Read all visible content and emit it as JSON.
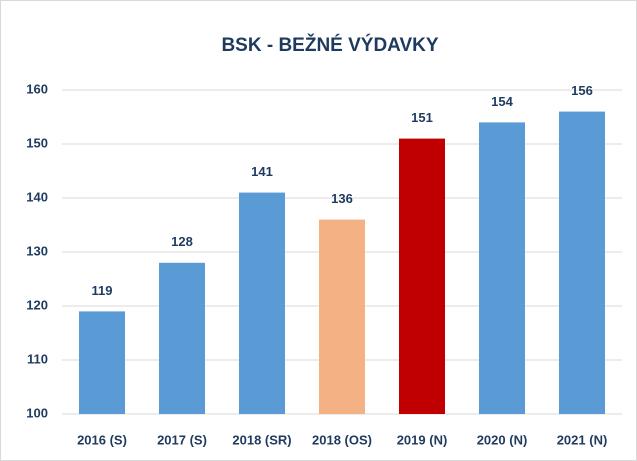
{
  "chart_data": {
    "type": "bar",
    "title": "BSK - BEŽNÉ VÝDAVKY",
    "categories": [
      "2016 (S)",
      "2017 (S)",
      "2018 (SR)",
      "2018 (OS)",
      "2019 (N)",
      "2020 (N)",
      "2021 (N)"
    ],
    "values": [
      119,
      128,
      141,
      136,
      151,
      154,
      156
    ],
    "colors": [
      "#5b9bd5",
      "#5b9bd5",
      "#5b9bd5",
      "#f4b183",
      "#c00000",
      "#5b9bd5",
      "#5b9bd5"
    ],
    "ylim": [
      100,
      160
    ],
    "yticks": [
      100,
      110,
      120,
      130,
      140,
      150,
      160
    ],
    "grid": true
  }
}
